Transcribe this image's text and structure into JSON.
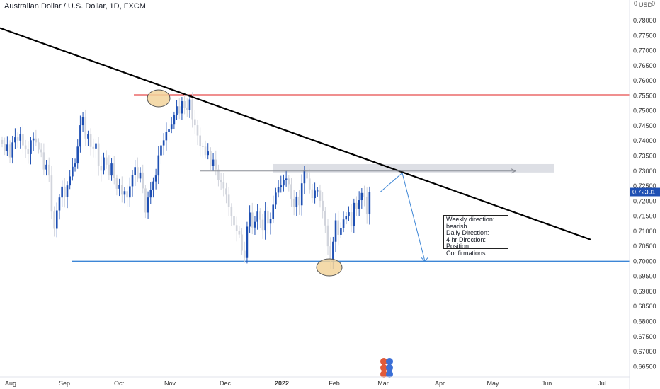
{
  "title": "Australian Dollar / U.S. Dollar, 1D, FXCM",
  "currency_label": "USD",
  "currency_suffix": "0",
  "axis_zero": "0",
  "note": {
    "lines": [
      "Weekly direction:",
      "bearish",
      "Daily Direction:",
      "4 hr Direction:",
      "Position:",
      "Confirmations:"
    ]
  },
  "colors": {
    "up": "#1e4fb3",
    "down": "#d1d4dc",
    "resistance": "#e01f1f",
    "support": "#3d86d6",
    "trendline": "#000000",
    "marker_fill": "#f2d49b",
    "price_tag": "#1e4fb3"
  },
  "chart_data": {
    "type": "candlestick",
    "title": "Australian Dollar / U.S. Dollar, 1D, FXCM",
    "y_ticks": [
      "0.78000",
      "0.77500",
      "0.77000",
      "0.76500",
      "0.76000",
      "0.75500",
      "0.75000",
      "0.74500",
      "0.74000",
      "0.73500",
      "0.73000",
      "0.72500",
      "0.72000",
      "0.71500",
      "0.71000",
      "0.70500",
      "0.70000",
      "0.69500",
      "0.69000",
      "0.68500",
      "0.68000",
      "0.67500",
      "0.67000",
      "0.66500"
    ],
    "x_ticks": [
      "Aug",
      "Sep",
      "Oct",
      "Nov",
      "Dec",
      "2022",
      "Feb",
      "Mar",
      "Apr",
      "May",
      "Jun",
      "Jul"
    ],
    "current_price": "0.72301",
    "resistance_level": 0.7552,
    "support_level": 0.7,
    "zone": [
      0.7295,
      0.7323
    ],
    "trendline": [
      {
        "date": "2021-07-10",
        "price": 0.7775
      },
      {
        "date": "2022-06-20",
        "price": 0.7072
      }
    ],
    "closes": [
      0.7391,
      0.7367,
      0.7388,
      0.7345,
      0.7395,
      0.7412,
      0.7401,
      0.7423,
      0.7385,
      0.7372,
      0.7356,
      0.7402,
      0.7408,
      0.7395,
      0.7371,
      0.7362,
      0.7305,
      0.7321,
      0.7285,
      0.7165,
      0.7108,
      0.7169,
      0.7212,
      0.7248,
      0.7213,
      0.7252,
      0.7282,
      0.7314,
      0.7325,
      0.7381,
      0.7452,
      0.7478,
      0.7408,
      0.7422,
      0.738,
      0.7375,
      0.7392,
      0.7318,
      0.7301,
      0.7345,
      0.7321,
      0.7285,
      0.7325,
      0.7276,
      0.7241,
      0.7254,
      0.7221,
      0.7233,
      0.7212,
      0.7249,
      0.7286,
      0.7313,
      0.7275,
      0.7295,
      0.7242,
      0.7162,
      0.7212,
      0.7236,
      0.7265,
      0.7285,
      0.7352,
      0.7385,
      0.7402,
      0.7429,
      0.7438,
      0.7454,
      0.7485,
      0.7515,
      0.7491,
      0.7532,
      0.7511,
      0.7502,
      0.7538,
      0.7472,
      0.7452,
      0.7418,
      0.7382,
      0.7381,
      0.7353,
      0.7365,
      0.7318,
      0.7338,
      0.7305,
      0.7271,
      0.7262,
      0.7242,
      0.7221,
      0.7181,
      0.7149,
      0.712,
      0.7102,
      0.7089,
      0.7035,
      0.7011,
      0.7115,
      0.7162,
      0.7112,
      0.7131,
      0.7165,
      0.7138,
      0.7104,
      0.7168,
      0.7125,
      0.714,
      0.7188,
      0.7228,
      0.7246,
      0.7252,
      0.727,
      0.7275,
      0.7256,
      0.7208,
      0.7181,
      0.7215,
      0.7186,
      0.7259,
      0.7302,
      0.7275,
      0.7239,
      0.721,
      0.7235,
      0.7235,
      0.7201,
      0.7167,
      0.7119,
      0.705,
      0.7005,
      0.7065,
      0.7136,
      0.7088,
      0.7111,
      0.7139,
      0.7151,
      0.7163,
      0.7117,
      0.7194,
      0.7175,
      0.7203,
      0.7227,
      0.7213,
      0.7156,
      0.723
    ]
  }
}
